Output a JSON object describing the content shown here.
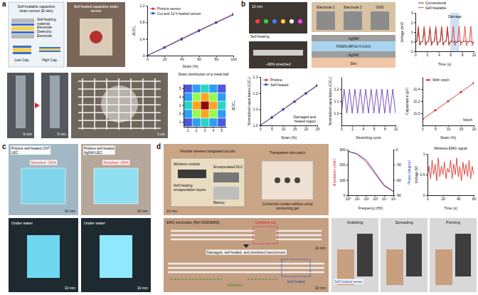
{
  "panels": [
    {
      "letter": "a",
      "labels": [
        "Self-healable capacitive strain-sensor (E-skin)",
        "Self-healing material",
        "Electrode",
        "Dielectric",
        "Electrode",
        "Low Cap.",
        "High Cap.",
        "Self-healed capacitive strain sensor",
        "5 mm",
        "5 mm",
        "1 cm"
      ]
    },
    {
      "letter": "b",
      "labels": [
        "10 mm",
        "Self-healing",
        "~90% stretched",
        "Electrode 1",
        "Electrode 2",
        "GND",
        "AgNW",
        "PDMS-MPU0.4-IU0.6",
        "AgNW",
        "Skin"
      ]
    },
    {
      "letter": "c",
      "labels": [
        "Pristine self-healed CNT LEC",
        "Pristine self-healed AgNW LEC",
        "Stretched ~50%",
        "Stretched ~50%",
        "10 mm",
        "10 mm",
        "Under water",
        "Under water",
        "10 mm",
        "10 mm"
      ]
    },
    {
      "letter": "d",
      "labels": [
        "10 mm",
        "Flexible wireless integrated circuits",
        "Wireless module",
        "Transparent skin patch",
        "Self-healing encapsulation layers",
        "Battery",
        "Encapsulated DLC",
        "Conformal contact without using conducting gel",
        "EMG electrodes (Ref./GND/EMS)",
        "Complete cut",
        "10 mm",
        "Damaged, self-healed, and stretched interconnect",
        "Self-healed",
        "Stretched",
        "10 mm",
        "Grabbing",
        "Spreading",
        "Pointing",
        "Self-healed areas"
      ]
    }
  ],
  "chart_data": [
    {
      "type": "line",
      "xlabel": "Strain (%)",
      "ylabel": "ΔC/C₀",
      "x": [
        0,
        20,
        40,
        60,
        80,
        100
      ],
      "xlim": [
        0,
        100
      ],
      "xticks": [
        0,
        20,
        40,
        60,
        80,
        100
      ],
      "ylim": [
        0,
        1.2
      ],
      "yticks": [
        0,
        0.4,
        0.8,
        1.2
      ],
      "legend": "upper left",
      "series": [
        {
          "name": "Pristine sensor",
          "color": "#d62728",
          "marker": "circle",
          "values": [
            0,
            0.2,
            0.41,
            0.61,
            0.8,
            1.0
          ]
        },
        {
          "name": "Cut and 12 h healed sensor",
          "color": "#1f4fbf",
          "marker": "square",
          "values": [
            0,
            0.19,
            0.39,
            0.59,
            0.79,
            0.98
          ]
        }
      ]
    },
    {
      "type": "heatmap",
      "title": "Strain distribution of a metal ball",
      "zlabel": "ΔC/C₀",
      "categories": [
        1,
        2,
        3,
        4,
        5
      ],
      "y_categories": [
        1,
        2,
        3,
        4,
        5
      ],
      "cells": [
        [
          0.05,
          0.1,
          0.15,
          0.1,
          0.05
        ],
        [
          0.1,
          0.25,
          0.35,
          0.25,
          0.1
        ],
        [
          0.15,
          0.35,
          0.5,
          0.35,
          0.15
        ],
        [
          0.1,
          0.25,
          0.35,
          0.25,
          0.1
        ],
        [
          0.05,
          0.1,
          0.15,
          0.1,
          0.05
        ]
      ],
      "color_range": [
        0,
        0.5
      ]
    },
    {
      "type": "line",
      "xlabel": "Time (s)",
      "ylabel": "Voltage (mV)",
      "x": [
        0,
        0.25,
        0.5,
        0.75,
        1,
        1.25,
        1.5,
        1.75,
        2,
        2.25,
        2.5,
        2.75,
        3,
        3.25,
        3.5,
        3.75,
        4,
        4.25,
        4.5,
        4.75,
        5,
        5.25,
        5.5,
        5.75,
        6,
        6.25,
        6.5,
        6.75,
        7,
        7.25,
        7.5,
        7.75,
        8,
        8.25,
        8.5,
        8.75,
        9,
        9.25,
        9.5,
        9.75,
        10
      ],
      "xlim": [
        0,
        10
      ],
      "xticks": [
        0,
        2,
        4,
        6,
        8,
        10
      ],
      "ylim": [
        -1,
        3
      ],
      "yticks": [
        -1,
        0,
        1,
        2,
        3
      ],
      "legend": "top",
      "series": [
        {
          "name": "Conventional",
          "color": "#333333",
          "values": [
            0,
            0,
            1.4,
            -0.3,
            0,
            0,
            1.4,
            -0.3,
            0,
            0,
            1.4,
            -0.3,
            0,
            0,
            1.4,
            -0.3,
            0,
            0,
            1.4,
            -0.3,
            0,
            0,
            1.4,
            -0.3,
            0,
            0.1,
            -0.1,
            0.05,
            0,
            -0.05,
            0.1,
            0,
            -0.1,
            0.05,
            0,
            0.1,
            -0.05,
            0,
            0.05,
            -0.1,
            0
          ]
        },
        {
          "name": "Self-healable",
          "color": "#e0362c",
          "values": [
            0,
            0,
            1.6,
            -0.4,
            0,
            0,
            1.6,
            -0.4,
            0,
            0,
            1.6,
            -0.4,
            0,
            0,
            1.6,
            -0.4,
            0,
            0,
            1.6,
            -0.4,
            0,
            0,
            1.6,
            -0.4,
            0,
            0,
            1.6,
            -0.4,
            0,
            0,
            1.6,
            -0.4,
            0,
            0,
            1.6,
            -0.4,
            0,
            0,
            1.6,
            -0.4,
            0
          ]
        }
      ],
      "annotations": [
        {
          "text": "Damage",
          "x_range": [
            6,
            7.5
          ]
        }
      ]
    },
    {
      "type": "line",
      "xlabel": "Strain (%)",
      "ylabel": "Normalized capacitance (C/C₀)",
      "x": [
        0,
        5,
        10,
        15,
        20,
        25
      ],
      "xlim": [
        0,
        25
      ],
      "xticks": [
        0,
        5,
        10,
        15,
        20,
        25
      ],
      "ylim": [
        1,
        1.3
      ],
      "yticks": [
        {
          "value": 1,
          "label": "1.0"
        },
        1.1,
        1.2,
        1.3
      ],
      "legend": "upper left",
      "series": [
        {
          "name": "Pristine",
          "color": "#d62728",
          "marker": "circle",
          "values": [
            1,
            1.05,
            1.1,
            1.15,
            1.2,
            1.25
          ]
        },
        {
          "name": "Self-healed",
          "color": "#1f4fbf",
          "marker": "square",
          "values": [
            1,
            1.048,
            1.098,
            1.146,
            1.197,
            1.245
          ]
        }
      ],
      "annotations": [
        {
          "text": "Damaged and healed region"
        }
      ]
    },
    {
      "type": "line",
      "xlabel": "Stretching cycle",
      "ylabel": "Normalized capacitance (C/C₀)",
      "x": [
        0,
        0.5,
        1,
        1.5,
        2,
        2.5,
        3,
        3.5,
        4,
        4.5,
        5,
        5.5,
        6,
        6.5,
        7,
        7.5,
        8,
        8.5,
        9,
        9.5,
        10
      ],
      "xlim": [
        0,
        10
      ],
      "xticks": [
        0,
        2,
        4,
        6,
        8,
        10
      ],
      "ylim": [
        0.9,
        1.3
      ],
      "yticks": [
        {
          "value": 1,
          "label": "1.0"
        },
        1.1,
        1.2
      ],
      "series": [
        {
          "color": "#6a3fb5",
          "values": [
            1,
            1.2,
            1,
            1.2,
            1,
            1.2,
            1,
            1.2,
            1,
            1.2,
            1,
            1.2,
            1,
            1.2,
            1,
            1.2,
            1,
            1.2,
            1,
            1.2,
            1
          ]
        }
      ]
    },
    {
      "type": "line",
      "xlabel": "Strain (%)",
      "ylabel": "Capacitance (pF)",
      "x": [
        0,
        5,
        10,
        15,
        20
      ],
      "xlim": [
        0,
        20
      ],
      "xticks": [
        0,
        5,
        10,
        15,
        20
      ],
      "ylim": [
        10.8,
        11.6
      ],
      "yticks": [
        {
          "value": 11,
          "label": "11.0"
        },
        11.2,
        11.4
      ],
      "legend": "upper left",
      "series": [
        {
          "name": "With notch",
          "color": "#d62728",
          "marker": "circle",
          "values": [
            10.9,
            11.05,
            11.2,
            11.35,
            11.5
          ]
        }
      ],
      "annotations": [
        {
          "text": "Notch"
        }
      ]
    },
    {
      "type": "line",
      "log": "x",
      "xlabel": "Frequency (Hz)",
      "ylabel": "Impedance (ohm)",
      "y2label": "Phase (degree)",
      "x": [
        1,
        10,
        100,
        1000,
        10000,
        100000
      ],
      "xlim": [
        1,
        100000
      ],
      "xticks": [
        {
          "value": 1,
          "label": "10⁰"
        },
        {
          "value": 10,
          "label": "10¹"
        },
        {
          "value": 100,
          "label": "10²"
        },
        {
          "value": 1000,
          "label": "10³"
        },
        {
          "value": 10000,
          "label": "10⁴"
        },
        {
          "value": 100000,
          "label": "10⁵"
        }
      ],
      "ylim": [
        0,
        300
      ],
      "yticks": [
        0,
        100,
        200,
        300
      ],
      "y2lim": [
        -90,
        0
      ],
      "y2ticks": [
        -90,
        -60,
        -30,
        0
      ],
      "series": [
        {
          "color": "#d62728",
          "values": [
            290,
            270,
            220,
            140,
            60,
            25
          ]
        },
        {
          "color": "#1f4fbf",
          "axis": "y2",
          "values": [
            -3,
            -8,
            -20,
            -45,
            -70,
            -82
          ]
        }
      ]
    },
    {
      "type": "line",
      "title": "Wireless EMG signal",
      "xlabel": "Time (s)",
      "ylabel": "Voltage (V)",
      "x": [
        0,
        2,
        4,
        6,
        8,
        10,
        12,
        14,
        16,
        18,
        20,
        22,
        24,
        26,
        28,
        30,
        32,
        34,
        36,
        38,
        40,
        42,
        44,
        46,
        48,
        50,
        52,
        54,
        56,
        58,
        60
      ],
      "xlim": [
        0,
        60
      ],
      "xticks": [
        0,
        20,
        40,
        60
      ],
      "ylim": [
        0,
        1
      ],
      "yticks": [
        0,
        0.5,
        1
      ],
      "series": [
        {
          "color": "#e0362c",
          "values": [
            0.45,
            0.7,
            0.4,
            0.85,
            0.5,
            0.75,
            0.35,
            0.9,
            0.45,
            0.7,
            0.5,
            0.8,
            0.4,
            0.65,
            0.55,
            0.85,
            0.4,
            0.75,
            0.5,
            0.9,
            0.45,
            0.7,
            0.35,
            0.8,
            0.5,
            0.75,
            0.45,
            0.85,
            0.4,
            0.7,
            0.5
          ]
        }
      ]
    }
  ]
}
